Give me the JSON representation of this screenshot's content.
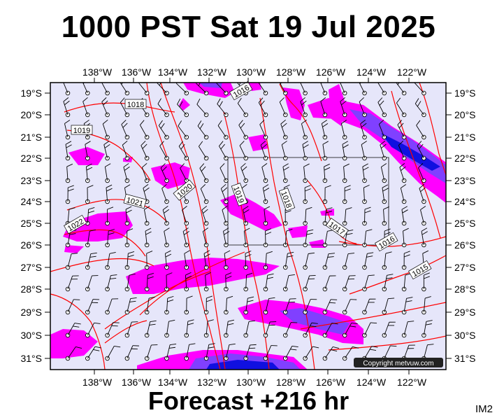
{
  "title": "1000 PST Sat 19 Jul 2025",
  "footer": "Forecast +216 hr",
  "image_tag": "IM2",
  "copyright": "Copyright metvuw.com",
  "lon_labels": [
    "138°W",
    "136°W",
    "134°W",
    "132°W",
    "130°W",
    "128°W",
    "126°W",
    "124°W",
    "122°W"
  ],
  "lat_labels": [
    "19°S",
    "20°S",
    "21°S",
    "22°S",
    "23°S",
    "24°S",
    "25°S",
    "26°S",
    "27°S",
    "28°S",
    "29°S",
    "30°S",
    "31°S"
  ],
  "isobar_labels": [
    "1016",
    "1018",
    "1019",
    "1020",
    "1021",
    "1022",
    "1019",
    "1018",
    "1017",
    "1016",
    "1015"
  ],
  "colors": {
    "background": "#e6e6fa",
    "precip_light": "#ff00ff",
    "precip_medium": "#8040ff",
    "precip_heavy": "#1010e0",
    "isobar": "#ff0000",
    "grid": "#000000"
  }
}
